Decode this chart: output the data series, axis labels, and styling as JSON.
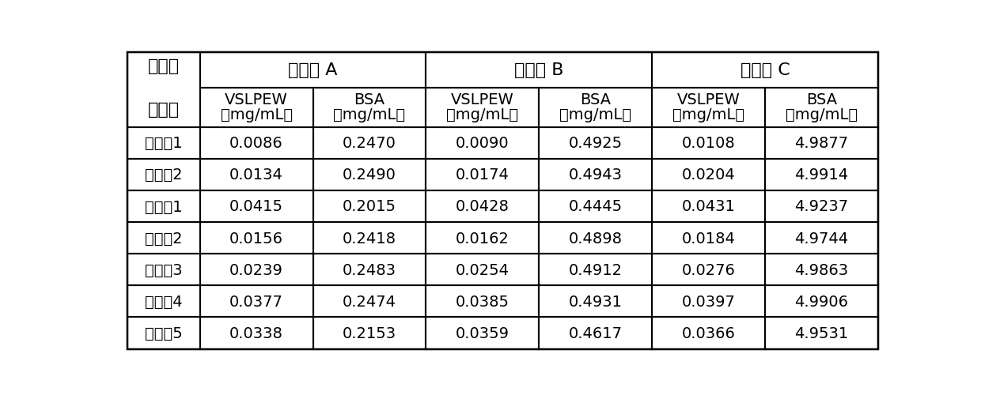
{
  "bg_color": "#ffffff",
  "border_color": "#000000",
  "row_header_top1": "亲和层",
  "row_header_top2": "析介质",
  "col_group_labels": [
    "混合液 A",
    "混合液 B",
    "混合液 C"
  ],
  "col_sub_label1": "VSLPEW",
  "col_sub_label2": "BSA",
  "col_sub_unit": "（mg/mL）",
  "data": [
    [
      "实施例1",
      "0.0086",
      "0.2470",
      "0.0090",
      "0.4925",
      "0.0108",
      "4.9877"
    ],
    [
      "实施例2",
      "0.0134",
      "0.2490",
      "0.0174",
      "0.4943",
      "0.0204",
      "4.9914"
    ],
    [
      "对比例1",
      "0.0415",
      "0.2015",
      "0.0428",
      "0.4445",
      "0.0431",
      "4.9237"
    ],
    [
      "对比例2",
      "0.0156",
      "0.2418",
      "0.0162",
      "0.4898",
      "0.0184",
      "4.9744"
    ],
    [
      "对比例3",
      "0.0239",
      "0.2483",
      "0.0254",
      "0.4912",
      "0.0276",
      "4.9863"
    ],
    [
      "对比例4",
      "0.0377",
      "0.2474",
      "0.0385",
      "0.4931",
      "0.0397",
      "4.9906"
    ],
    [
      "对比例5",
      "0.0338",
      "0.2153",
      "0.0359",
      "0.4617",
      "0.0366",
      "4.9531"
    ]
  ],
  "font_size": 14,
  "header_font_size": 16,
  "line_width": 1.5,
  "text_color": "#000000",
  "figsize": [
    12.4,
    5.06
  ],
  "dpi": 100
}
